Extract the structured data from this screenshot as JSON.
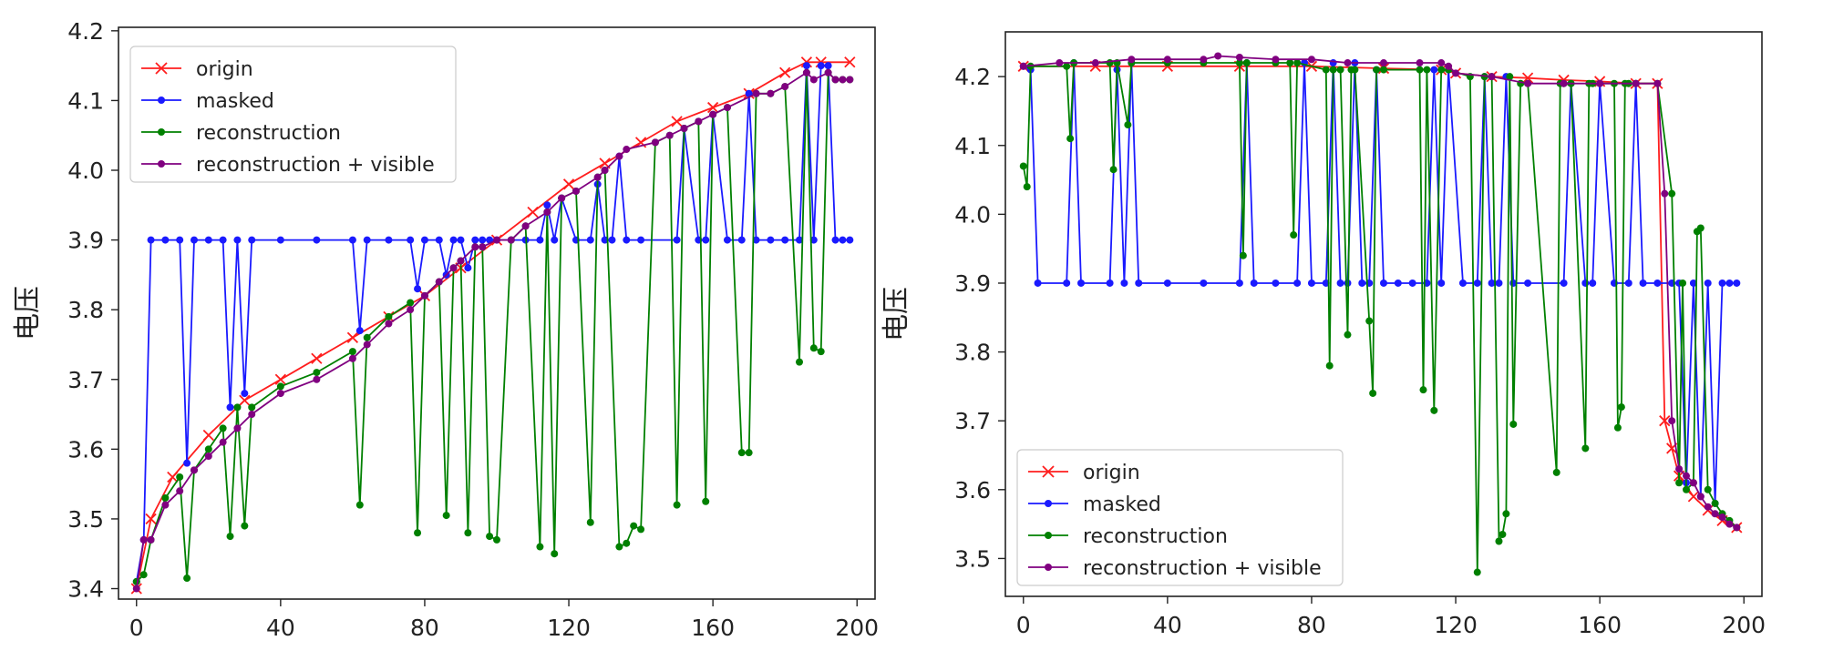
{
  "chart_data": [
    {
      "type": "line",
      "title": "",
      "xlabel": "",
      "ylabel": "电压",
      "xlim": [
        -5,
        205
      ],
      "ylim": [
        3.385,
        4.205
      ],
      "xticks": [
        0,
        40,
        80,
        120,
        160,
        200
      ],
      "yticks": [
        3.4,
        3.5,
        3.6,
        3.7,
        3.8,
        3.9,
        4.0,
        4.1,
        4.2
      ],
      "ytick_labels": [
        "3.4",
        "3.5",
        "3.6",
        "3.7",
        "3.8",
        "3.9",
        "4.0",
        "4.1",
        "4.2"
      ],
      "legend_position": "top-left",
      "series": [
        {
          "name": "origin",
          "color": "#ff1e1e",
          "marker": "x",
          "x": [
            0,
            4,
            10,
            20,
            30,
            40,
            50,
            60,
            70,
            80,
            90,
            100,
            110,
            120,
            130,
            140,
            150,
            160,
            170,
            180,
            186,
            190,
            198
          ],
          "y": [
            3.4,
            3.5,
            3.56,
            3.62,
            3.67,
            3.7,
            3.73,
            3.76,
            3.79,
            3.82,
            3.86,
            3.9,
            3.94,
            3.98,
            4.01,
            4.04,
            4.07,
            4.09,
            4.11,
            4.14,
            4.155,
            4.155,
            4.155
          ]
        },
        {
          "name": "masked",
          "color": "#1a1aff",
          "marker": "dot",
          "x": [
            0,
            2,
            4,
            8,
            12,
            14,
            16,
            20,
            24,
            26,
            28,
            30,
            32,
            40,
            50,
            60,
            62,
            64,
            70,
            76,
            78,
            80,
            84,
            86,
            88,
            90,
            92,
            94,
            96,
            98,
            100,
            104,
            108,
            112,
            114,
            116,
            118,
            122,
            126,
            128,
            130,
            132,
            134,
            136,
            140,
            150,
            152,
            156,
            158,
            160,
            164,
            168,
            170,
            172,
            176,
            180,
            184,
            186,
            188,
            190,
            192,
            194,
            196,
            198
          ],
          "y": [
            3.41,
            3.47,
            3.9,
            3.9,
            3.9,
            3.58,
            3.9,
            3.9,
            3.9,
            3.66,
            3.9,
            3.68,
            3.9,
            3.9,
            3.9,
            3.9,
            3.77,
            3.9,
            3.9,
            3.9,
            3.83,
            3.9,
            3.9,
            3.85,
            3.9,
            3.9,
            3.86,
            3.9,
            3.9,
            3.9,
            3.9,
            3.9,
            3.9,
            3.9,
            3.95,
            3.9,
            3.96,
            3.9,
            3.9,
            3.98,
            3.9,
            3.9,
            4.02,
            3.9,
            3.9,
            3.9,
            4.06,
            3.9,
            3.9,
            4.08,
            3.9,
            3.9,
            4.11,
            3.9,
            3.9,
            3.9,
            3.9,
            4.15,
            3.9,
            4.15,
            4.15,
            3.9,
            3.9,
            3.9
          ]
        },
        {
          "name": "reconstruction",
          "color": "#008000",
          "marker": "dot",
          "x": [
            0,
            2,
            4,
            8,
            12,
            14,
            16,
            20,
            24,
            26,
            28,
            30,
            32,
            40,
            50,
            60,
            62,
            64,
            70,
            76,
            78,
            80,
            84,
            86,
            88,
            90,
            92,
            94,
            96,
            98,
            100,
            104,
            108,
            112,
            114,
            116,
            118,
            122,
            126,
            128,
            130,
            134,
            136,
            138,
            140,
            144,
            148,
            150,
            152,
            156,
            158,
            160,
            164,
            168,
            170,
            172,
            176,
            180,
            184,
            186,
            188,
            190,
            192,
            194,
            196,
            198
          ],
          "y": [
            3.41,
            3.42,
            3.47,
            3.53,
            3.56,
            3.415,
            3.57,
            3.6,
            3.63,
            3.475,
            3.66,
            3.49,
            3.66,
            3.69,
            3.71,
            3.74,
            3.52,
            3.76,
            3.79,
            3.81,
            3.48,
            3.82,
            3.84,
            3.505,
            3.86,
            3.87,
            3.48,
            3.89,
            3.89,
            3.475,
            3.47,
            3.9,
            3.92,
            3.46,
            3.94,
            3.45,
            3.96,
            3.97,
            3.495,
            3.99,
            4.0,
            3.46,
            3.465,
            3.49,
            3.485,
            4.04,
            4.05,
            3.52,
            4.06,
            4.07,
            3.525,
            4.08,
            4.09,
            3.595,
            3.595,
            4.11,
            4.11,
            4.12,
            3.725,
            4.14,
            3.745,
            3.74,
            4.14,
            4.13,
            4.13,
            4.13
          ]
        },
        {
          "name": "reconstruction + visible",
          "color": "#800080",
          "marker": "dot",
          "x": [
            0,
            2,
            4,
            8,
            12,
            16,
            20,
            24,
            28,
            32,
            40,
            50,
            60,
            64,
            70,
            76,
            80,
            84,
            88,
            90,
            94,
            96,
            100,
            104,
            108,
            114,
            118,
            122,
            128,
            130,
            134,
            136,
            144,
            148,
            152,
            156,
            160,
            164,
            172,
            176,
            180,
            186,
            188,
            192,
            194,
            196,
            198
          ],
          "y": [
            3.4,
            3.47,
            3.47,
            3.52,
            3.54,
            3.57,
            3.59,
            3.61,
            3.63,
            3.65,
            3.68,
            3.7,
            3.73,
            3.75,
            3.78,
            3.8,
            3.82,
            3.84,
            3.86,
            3.87,
            3.89,
            3.89,
            3.9,
            3.9,
            3.92,
            3.94,
            3.96,
            3.97,
            3.99,
            4.0,
            4.02,
            4.03,
            4.04,
            4.05,
            4.06,
            4.07,
            4.08,
            4.09,
            4.11,
            4.11,
            4.12,
            4.14,
            4.13,
            4.14,
            4.13,
            4.13,
            4.13
          ]
        }
      ]
    },
    {
      "type": "line",
      "title": "",
      "xlabel": "",
      "ylabel": "电压",
      "xlim": [
        -5,
        205
      ],
      "ylim": [
        3.445,
        4.265
      ],
      "xticks": [
        0,
        40,
        80,
        120,
        160,
        200
      ],
      "yticks": [
        3.5,
        3.6,
        3.7,
        3.8,
        3.9,
        4.0,
        4.1,
        4.2
      ],
      "ytick_labels": [
        "3.5",
        "3.6",
        "3.7",
        "3.8",
        "3.9",
        "4.0",
        "4.1",
        "4.2"
      ],
      "legend_position": "bottom-left",
      "series": [
        {
          "name": "origin",
          "color": "#ff1e1e",
          "marker": "x",
          "x": [
            0,
            20,
            40,
            60,
            80,
            100,
            116,
            120,
            130,
            140,
            150,
            160,
            170,
            176,
            178,
            180,
            182,
            186,
            190,
            194,
            198
          ],
          "y": [
            4.215,
            4.215,
            4.215,
            4.215,
            4.215,
            4.212,
            4.21,
            4.205,
            4.2,
            4.198,
            4.195,
            4.193,
            4.19,
            4.19,
            3.7,
            3.66,
            3.62,
            3.59,
            3.57,
            3.555,
            3.545
          ]
        },
        {
          "name": "masked",
          "color": "#1a1aff",
          "marker": "dot",
          "x": [
            0,
            2,
            4,
            12,
            14,
            16,
            24,
            26,
            28,
            30,
            32,
            40,
            50,
            60,
            62,
            64,
            70,
            76,
            78,
            80,
            84,
            86,
            88,
            90,
            92,
            94,
            96,
            98,
            100,
            104,
            108,
            112,
            114,
            116,
            118,
            122,
            126,
            128,
            130,
            132,
            134,
            136,
            140,
            150,
            152,
            156,
            158,
            160,
            164,
            168,
            170,
            172,
            176,
            180,
            182,
            184,
            186,
            188,
            190,
            192,
            194,
            196,
            198
          ],
          "y": [
            4.215,
            4.21,
            3.9,
            3.9,
            4.22,
            3.9,
            3.9,
            4.21,
            3.9,
            4.22,
            3.9,
            3.9,
            3.9,
            3.9,
            4.22,
            3.9,
            3.9,
            3.9,
            4.22,
            3.9,
            3.9,
            4.22,
            3.9,
            3.9,
            4.22,
            3.9,
            3.9,
            4.21,
            3.9,
            3.9,
            3.9,
            3.9,
            4.21,
            3.9,
            4.21,
            3.9,
            3.9,
            4.2,
            3.9,
            3.9,
            4.2,
            3.9,
            3.9,
            3.9,
            4.19,
            3.9,
            3.9,
            4.19,
            3.9,
            3.9,
            4.19,
            3.9,
            3.9,
            3.9,
            3.9,
            3.61,
            3.9,
            3.59,
            3.9,
            3.58,
            3.9,
            3.9,
            3.9
          ]
        },
        {
          "name": "reconstruction",
          "color": "#008000",
          "marker": "dot",
          "x": [
            0,
            1,
            2,
            12,
            13,
            14,
            24,
            25,
            26,
            29,
            30,
            40,
            50,
            60,
            61,
            62,
            70,
            74,
            75,
            76,
            84,
            85,
            86,
            88,
            90,
            91,
            92,
            96,
            97,
            98,
            100,
            110,
            111,
            112,
            114,
            116,
            118,
            124,
            126,
            128,
            130,
            132,
            133,
            134,
            135,
            136,
            138,
            140,
            148,
            149,
            150,
            152,
            156,
            157,
            158,
            164,
            165,
            166,
            167,
            168,
            170,
            176,
            180,
            182,
            183,
            184,
            186,
            187,
            188,
            190,
            192,
            194,
            196,
            198
          ],
          "y": [
            4.07,
            4.04,
            4.215,
            4.215,
            4.11,
            4.22,
            4.22,
            4.065,
            4.22,
            4.13,
            4.22,
            4.22,
            4.22,
            4.22,
            3.94,
            4.22,
            4.22,
            4.22,
            3.97,
            4.22,
            4.21,
            3.78,
            4.21,
            4.21,
            3.825,
            4.21,
            4.21,
            3.845,
            3.74,
            4.21,
            4.21,
            4.21,
            3.745,
            4.21,
            3.715,
            4.21,
            4.21,
            4.2,
            3.48,
            4.2,
            4.2,
            3.525,
            3.535,
            3.565,
            4.2,
            3.695,
            4.19,
            4.19,
            3.625,
            4.19,
            4.19,
            4.19,
            3.66,
            4.19,
            4.19,
            4.19,
            3.69,
            3.72,
            4.19,
            4.19,
            4.19,
            4.19,
            4.03,
            3.61,
            3.9,
            3.6,
            3.61,
            3.975,
            3.98,
            3.6,
            3.58,
            3.565,
            3.555,
            3.545
          ]
        },
        {
          "name": "reconstruction + visible",
          "color": "#800080",
          "marker": "dot",
          "x": [
            0,
            10,
            20,
            30,
            40,
            50,
            54,
            60,
            70,
            80,
            90,
            100,
            110,
            116,
            118,
            120,
            130,
            140,
            150,
            160,
            170,
            176,
            178,
            180,
            182,
            184,
            186,
            188,
            190,
            192,
            194,
            196,
            198
          ],
          "y": [
            4.215,
            4.22,
            4.22,
            4.225,
            4.225,
            4.225,
            4.23,
            4.228,
            4.225,
            4.225,
            4.22,
            4.22,
            4.22,
            4.22,
            4.215,
            4.205,
            4.2,
            4.19,
            4.19,
            4.19,
            4.19,
            4.19,
            4.03,
            3.7,
            3.63,
            3.62,
            3.61,
            3.59,
            3.575,
            3.565,
            3.56,
            3.55,
            3.545
          ]
        }
      ]
    }
  ]
}
